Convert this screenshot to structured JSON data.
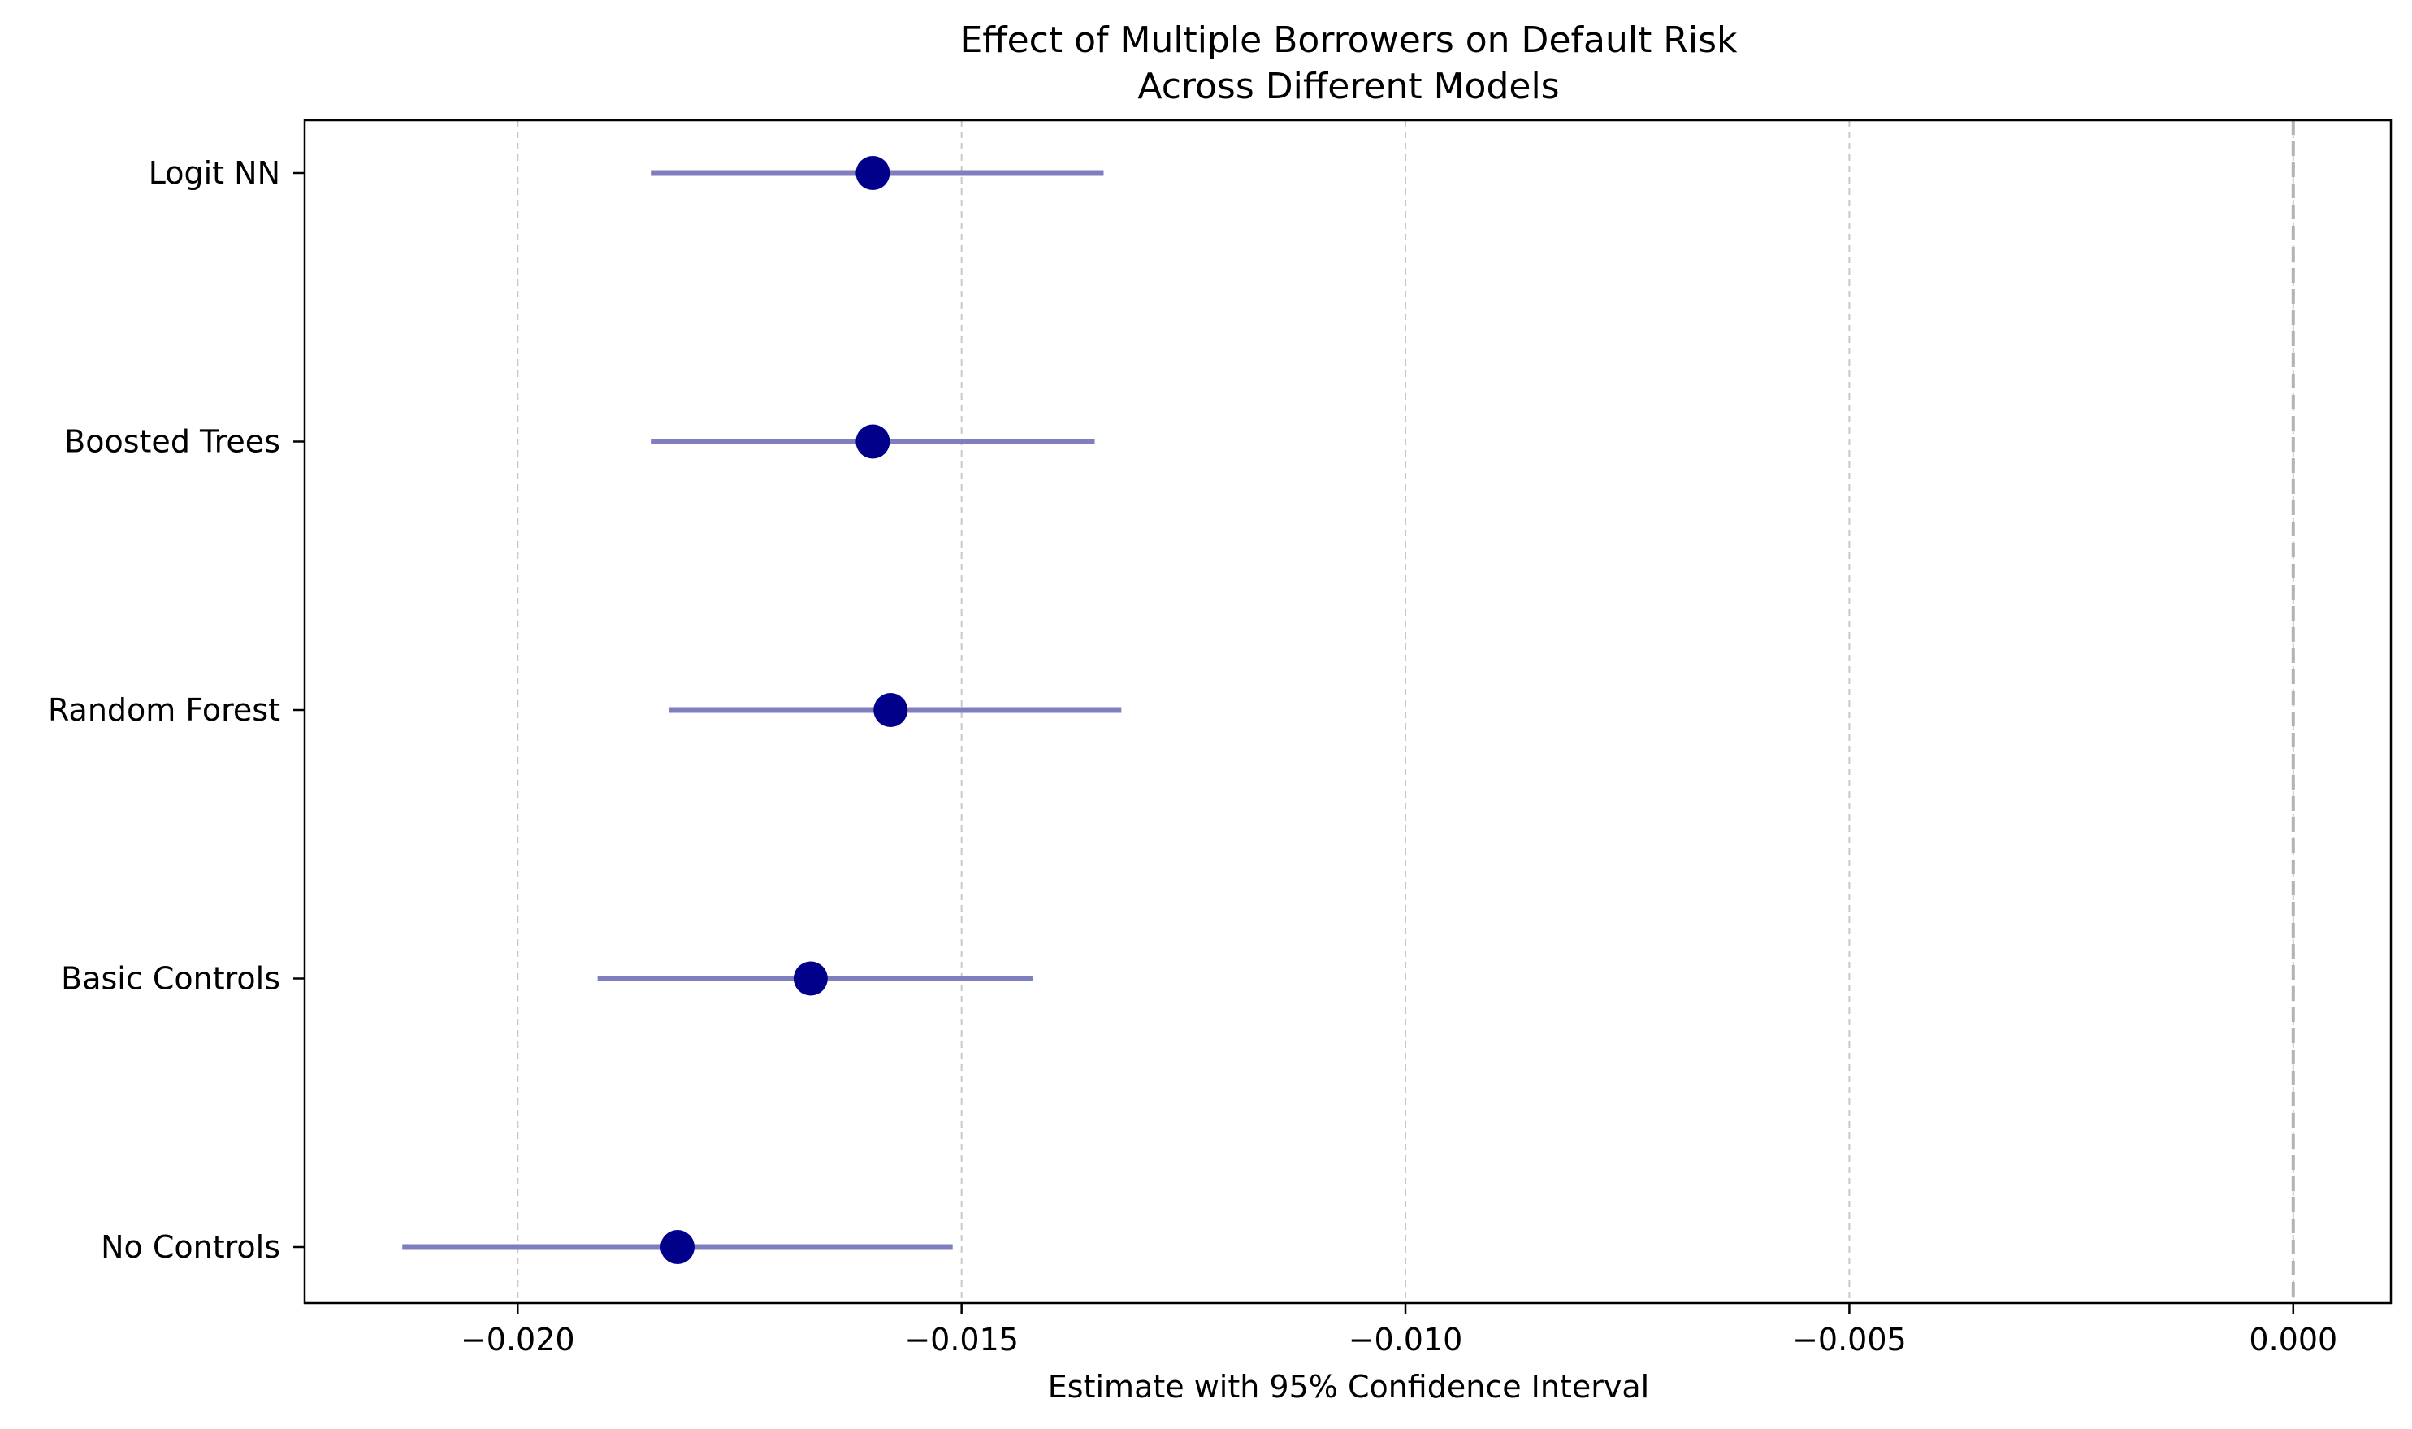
{
  "chart_data": {
    "type": "scatter",
    "title_lines": [
      "Effect of Multiple Borrowers on Default Risk",
      "Across Different Models"
    ],
    "xlabel": "Estimate with 95% Confidence Interval",
    "ylabel": "",
    "xlim": [
      -0.0224,
      0.0011
    ],
    "x_ticks": [
      -0.02,
      -0.015,
      -0.01,
      -0.005,
      0.0
    ],
    "x_tick_labels": [
      "−0.020",
      "−0.015",
      "−0.010",
      "−0.005",
      "0.000"
    ],
    "grid": {
      "x": true,
      "y": false,
      "style": "dashed"
    },
    "reference_line_x": 0.0,
    "categories": [
      "Logit NN",
      "Boosted Trees",
      "Random Forest",
      "Basic Controls",
      "No Controls"
    ],
    "estimates": [
      -0.016,
      -0.016,
      -0.0158,
      -0.0167,
      -0.0182
    ],
    "ci_lower": [
      -0.0185,
      -0.0185,
      -0.0183,
      -0.0191,
      -0.0213
    ],
    "ci_upper": [
      -0.0134,
      -0.0135,
      -0.0132,
      -0.0142,
      -0.0151
    ],
    "colors": {
      "point": "#00008b",
      "interval": "#7f7fc0",
      "grid": "#c8c8c8",
      "reference": "#b3b3b3"
    }
  }
}
